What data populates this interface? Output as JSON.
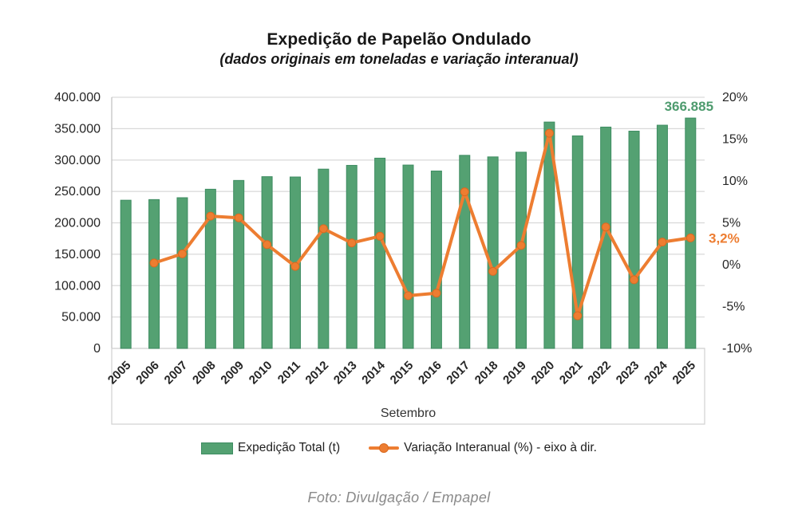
{
  "title": "Expedição de Papelão Ondulado",
  "subtitle": "(dados originais em toneladas e variação interanual)",
  "caption": "Foto: Divulgação / Empapel",
  "legend": {
    "bar_label": "Expedição Total (t)",
    "line_label": "Variação Interanual (%) - eixo à dir."
  },
  "colors": {
    "bar_fill": "#54A172",
    "bar_border": "#3D8C61",
    "line": "#ED7D31",
    "line_marker_border": "#D96A20",
    "annotation_green": "#4E9B6E",
    "annotation_orange": "#ED7D31",
    "grid": "#D9D9D9",
    "axis_line": "#BFBFBF",
    "box_border": "#D0D0D0",
    "tick_text": "#262626"
  },
  "chart_data": {
    "type": "bar+line combo",
    "title": "Expedição de Papelão Ondulado",
    "subtitle": "(dados originais em toneladas e variação interanual)",
    "x_axis_label": "Setembro",
    "categories": [
      "2005",
      "2006",
      "2007",
      "2008",
      "2009",
      "2010",
      "2011",
      "2012",
      "2013",
      "2014",
      "2015",
      "2016",
      "2017",
      "2018",
      "2019",
      "2020",
      "2021",
      "2022",
      "2023",
      "2024",
      "2025"
    ],
    "series": [
      {
        "name": "Expedição Total (t)",
        "type": "bar",
        "axis": "left",
        "values": [
          236000,
          237000,
          240000,
          253500,
          267500,
          273500,
          273000,
          285500,
          291500,
          303000,
          292000,
          282500,
          307500,
          305000,
          312500,
          360500,
          338500,
          352500,
          346000,
          355500,
          366885
        ]
      },
      {
        "name": "Variação Interanual (%) - eixo à dir.",
        "type": "line",
        "axis": "right",
        "values": [
          null,
          0.2,
          1.3,
          5.8,
          5.6,
          2.4,
          -0.2,
          4.3,
          2.6,
          3.4,
          -3.7,
          -3.4,
          8.7,
          -0.8,
          2.3,
          15.7,
          -6.1,
          4.5,
          -1.8,
          2.7,
          3.2
        ]
      }
    ],
    "left_axis": {
      "min": 0,
      "max": 400000,
      "step": 50000,
      "tick_labels": [
        "400.000",
        "350.000",
        "300.000",
        "250.000",
        "200.000",
        "150.000",
        "100.000",
        "50.000",
        "0"
      ]
    },
    "right_axis": {
      "min": -10,
      "max": 20,
      "step": 5,
      "tick_labels": [
        "20%",
        "15%",
        "10%",
        "5%",
        "0%",
        "-5%",
        "-10%"
      ]
    },
    "grid": true,
    "legend_position": "bottom",
    "annotations": {
      "last_bar_label": "366.885",
      "last_point_label": "3,2%"
    }
  }
}
